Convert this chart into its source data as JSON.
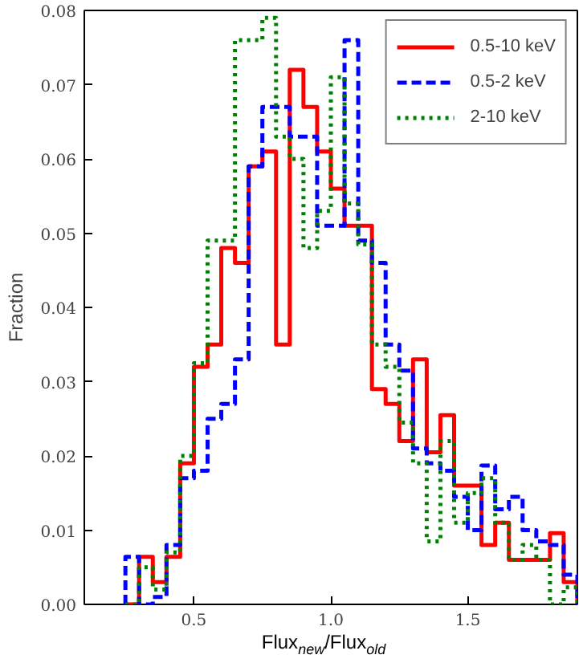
{
  "chart_data": {
    "type": "histogram",
    "xlabel": "Flux$_{new}$/Flux$_{old}$",
    "ylabel": "Fraction",
    "bins": [
      0.25,
      0.3,
      0.35,
      0.4,
      0.45,
      0.5,
      0.55,
      0.6,
      0.65,
      0.7,
      0.75,
      0.8,
      0.85,
      0.9,
      0.95,
      1.0,
      1.05,
      1.1,
      1.15,
      1.2,
      1.25,
      1.3,
      1.35,
      1.4,
      1.45,
      1.5,
      1.55,
      1.6,
      1.65,
      1.7,
      1.75,
      1.8,
      1.85,
      1.9
    ],
    "series": [
      {
        "name": "0.5-10 keV",
        "color": "#ff0000",
        "line_style": "solid",
        "values": [
          0,
          0.0064,
          0.003,
          0.0064,
          0.019,
          0.032,
          0.035,
          0.048,
          0.046,
          0.059,
          0.061,
          0.035,
          0.072,
          0.067,
          0.061,
          0.056,
          0.051,
          0.051,
          0.029,
          0.027,
          0.022,
          0.033,
          0.0205,
          0.0255,
          0.016,
          0.016,
          0.008,
          0.011,
          0.006,
          0.006,
          0.006,
          0.0096,
          0.003
        ]
      },
      {
        "name": "0.5-2 keV",
        "color": "#0000ff",
        "line_style": "dashed",
        "values": [
          0.0064,
          0,
          0.001,
          0.008,
          0.017,
          0.018,
          0.025,
          0.027,
          0.033,
          0.059,
          0.067,
          0.067,
          0.063,
          0.063,
          0.051,
          0.051,
          0.076,
          0.049,
          0.046,
          0.035,
          0.0315,
          0.021,
          0.019,
          0.018,
          0.0145,
          0.01,
          0.0187,
          0.0128,
          0.0145,
          0.01,
          0.0085,
          0.008,
          0.004
        ]
      },
      {
        "name": "2-10 keV",
        "color": "#008000",
        "line_style": "dotted",
        "values": [
          0,
          0.005,
          0.002,
          0.007,
          0.02,
          0.0325,
          0.049,
          0.049,
          0.076,
          0.076,
          0.079,
          0.063,
          0.06,
          0.048,
          0.053,
          0.071,
          0.054,
          0.0485,
          0.035,
          0.032,
          0.0245,
          0.019,
          0.0085,
          0.022,
          0.011,
          0.015,
          0.017,
          0.011,
          0.006,
          0.008,
          0.006,
          0,
          0.0023
        ]
      }
    ],
    "xlim": [
      0.1,
      1.9
    ],
    "ylim": [
      0,
      0.08
    ],
    "xticks": [
      {
        "value": 0.5,
        "label": "0.5"
      },
      {
        "value": 1.0,
        "label": "1.0"
      },
      {
        "value": 1.5,
        "label": "1.5"
      }
    ],
    "yticks": [
      {
        "value": 0,
        "label": "0.00"
      },
      {
        "value": 0.01,
        "label": "0.01"
      },
      {
        "value": 0.02,
        "label": "0.02"
      },
      {
        "value": 0.03,
        "label": "0.03"
      },
      {
        "value": 0.04,
        "label": "0.04"
      },
      {
        "value": 0.05,
        "label": "0.05"
      },
      {
        "value": 0.06,
        "label": "0.06"
      },
      {
        "value": 0.07,
        "label": "0.07"
      },
      {
        "value": 0.08,
        "label": "0.08"
      }
    ],
    "legend": "top right",
    "grid": false
  }
}
